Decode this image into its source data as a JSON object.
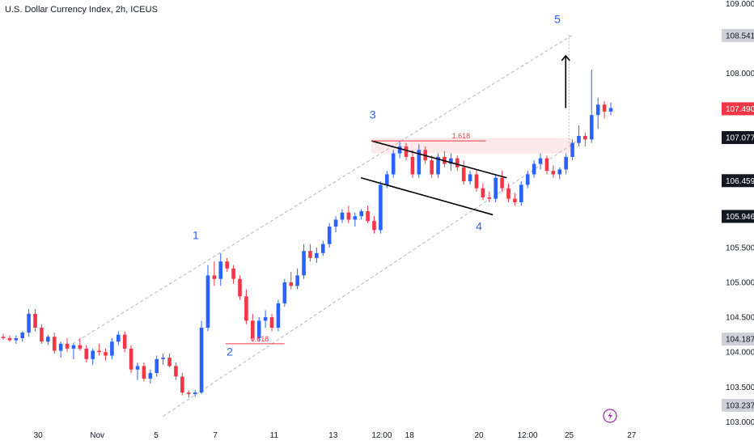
{
  "title": "U.S. Dollar Currency Index, 2h, ICEUS",
  "colors": {
    "bull": "#2962ff",
    "bear": "#f23645",
    "channel": "#b2b5be",
    "fib": "#f23645",
    "wave_label": "#2962ff",
    "zone": "#fbe5e7",
    "axis_text": "#131722"
  },
  "chart_data": {
    "type": "candlestick",
    "y_axis": {
      "range": [
        102.9,
        109.05
      ],
      "ticks": [
        "109.000",
        "108.000",
        "105.500",
        "105.000",
        "104.500",
        "104.000",
        "103.500",
        "103.000"
      ]
    },
    "x_axis": {
      "range": [
        0,
        100
      ],
      "ticks": [
        {
          "x": 5.5,
          "label": "30"
        },
        {
          "x": 14,
          "label": "Nov"
        },
        {
          "x": 22.5,
          "label": "5"
        },
        {
          "x": 31,
          "label": "7"
        },
        {
          "x": 39.5,
          "label": "11"
        },
        {
          "x": 48,
          "label": "13"
        },
        {
          "x": 55,
          "label": "12:00"
        },
        {
          "x": 59,
          "label": "18"
        },
        {
          "x": 69,
          "label": "20"
        },
        {
          "x": 76,
          "label": "12:00"
        },
        {
          "x": 82,
          "label": "25"
        },
        {
          "x": 91,
          "label": "27"
        }
      ]
    },
    "price_labels": [
      {
        "value": 108.541,
        "text": "108.541",
        "style": "gray"
      },
      {
        "value": 107.49,
        "text": "107.490",
        "style": "red"
      },
      {
        "value": 107.077,
        "text": "107.077",
        "style": "black"
      },
      {
        "value": 106.459,
        "text": "106.459",
        "style": "black"
      },
      {
        "value": 105.946,
        "text": "105.946",
        "style": "black"
      },
      {
        "value": 104.187,
        "text": "104.187",
        "style": "gray"
      },
      {
        "value": 103.237,
        "text": "103.237",
        "style": "gray"
      }
    ],
    "wave_labels": [
      {
        "text": "1",
        "x": 28.2,
        "y": 105.62
      },
      {
        "text": "2",
        "x": 33.1,
        "y": 103.95
      },
      {
        "text": "3",
        "x": 53.7,
        "y": 107.35
      },
      {
        "text": "4",
        "x": 69,
        "y": 105.75
      },
      {
        "text": "5",
        "x": 80.3,
        "y": 108.72
      }
    ],
    "fib_levels": [
      {
        "label": "0.618",
        "x1": 32.5,
        "x2": 41,
        "y": 104.12
      },
      {
        "label": "1.618",
        "x1": 53.5,
        "x2": 70,
        "y": 107.03
      }
    ],
    "channel_lines": [
      {
        "x1": 10.5,
        "y1": 104.12,
        "x2": 82.5,
        "y2": 108.55
      },
      {
        "x1": 23.5,
        "y1": 103.08,
        "x2": 83,
        "y2": 107.02
      }
    ],
    "wedge_lines": [
      {
        "x1": 53.5,
        "y1": 107.03,
        "x2": 73,
        "y2": 106.5
      },
      {
        "x1": 52,
        "y1": 106.5,
        "x2": 71,
        "y2": 105.97
      }
    ],
    "zone": {
      "x1": 53.5,
      "x2": 82.5,
      "y1": 106.85,
      "y2": 107.07
    },
    "arrow": {
      "x": 81.5,
      "y_from": 107.5,
      "y_to": 108.25,
      "dashed_to": 108.55
    },
    "candles": [
      [
        104.22,
        104.26,
        104.18,
        104.2
      ],
      [
        104.2,
        104.24,
        104.15,
        104.17
      ],
      [
        104.17,
        104.24,
        104.12,
        104.2
      ],
      [
        104.2,
        104.3,
        104.15,
        104.28
      ],
      [
        104.28,
        104.62,
        104.22,
        104.55
      ],
      [
        104.55,
        104.62,
        104.3,
        104.35
      ],
      [
        104.35,
        104.4,
        104.12,
        104.15
      ],
      [
        104.15,
        104.25,
        104.1,
        104.22
      ],
      [
        104.22,
        104.28,
        103.98,
        104.02
      ],
      [
        104.02,
        104.15,
        103.92,
        104.12
      ],
      [
        104.12,
        104.2,
        104.0,
        104.05
      ],
      [
        104.05,
        104.12,
        103.9,
        104.1
      ],
      [
        104.1,
        104.2,
        104.02,
        104.05
      ],
      [
        104.05,
        104.1,
        103.85,
        103.9
      ],
      [
        103.9,
        104.05,
        103.82,
        104.02
      ],
      [
        104.02,
        104.12,
        103.95,
        104.0
      ],
      [
        104.0,
        104.05,
        103.88,
        103.95
      ],
      [
        103.95,
        104.2,
        103.9,
        104.15
      ],
      [
        104.15,
        104.3,
        104.1,
        104.25
      ],
      [
        104.25,
        104.3,
        104.0,
        104.05
      ],
      [
        104.05,
        104.1,
        103.7,
        103.75
      ],
      [
        103.75,
        103.85,
        103.6,
        103.8
      ],
      [
        103.8,
        103.85,
        103.58,
        103.62
      ],
      [
        103.62,
        103.75,
        103.55,
        103.7
      ],
      [
        103.7,
        103.95,
        103.65,
        103.9
      ],
      [
        103.9,
        103.98,
        103.82,
        103.92
      ],
      [
        103.92,
        103.98,
        103.78,
        103.8
      ],
      [
        103.8,
        103.85,
        103.6,
        103.65
      ],
      [
        103.65,
        103.7,
        103.38,
        103.42
      ],
      [
        103.42,
        103.45,
        103.35,
        103.4
      ],
      [
        103.4,
        103.46,
        103.36,
        103.42
      ],
      [
        103.42,
        104.45,
        103.4,
        104.35
      ],
      [
        104.35,
        105.25,
        104.3,
        105.1
      ],
      [
        105.1,
        105.3,
        104.95,
        105.05
      ],
      [
        105.05,
        105.42,
        104.95,
        105.3
      ],
      [
        105.3,
        105.35,
        105.15,
        105.2
      ],
      [
        105.2,
        105.25,
        104.98,
        105.05
      ],
      [
        105.05,
        105.1,
        104.75,
        104.8
      ],
      [
        104.8,
        104.9,
        104.4,
        104.45
      ],
      [
        104.45,
        104.55,
        104.15,
        104.2
      ],
      [
        104.2,
        104.5,
        104.15,
        104.45
      ],
      [
        104.45,
        104.6,
        104.35,
        104.5
      ],
      [
        104.5,
        104.55,
        104.3,
        104.35
      ],
      [
        104.35,
        104.75,
        104.3,
        104.7
      ],
      [
        104.7,
        105.05,
        104.65,
        105.0
      ],
      [
        105.0,
        105.15,
        104.9,
        104.95
      ],
      [
        104.95,
        105.2,
        104.9,
        105.1
      ],
      [
        105.1,
        105.55,
        105.05,
        105.45
      ],
      [
        105.45,
        105.55,
        105.3,
        105.35
      ],
      [
        105.35,
        105.5,
        105.28,
        105.42
      ],
      [
        105.42,
        105.6,
        105.38,
        105.55
      ],
      [
        105.55,
        105.85,
        105.5,
        105.8
      ],
      [
        105.8,
        105.95,
        105.72,
        105.9
      ],
      [
        105.9,
        106.05,
        105.85,
        106.0
      ],
      [
        106.0,
        106.1,
        105.85,
        105.9
      ],
      [
        105.9,
        106.0,
        105.8,
        105.95
      ],
      [
        105.95,
        106.05,
        105.9,
        106.02
      ],
      [
        106.02,
        106.1,
        105.85,
        105.88
      ],
      [
        105.88,
        105.95,
        105.7,
        105.75
      ],
      [
        105.75,
        106.45,
        105.7,
        106.4
      ],
      [
        106.4,
        106.6,
        106.35,
        106.55
      ],
      [
        106.55,
        106.9,
        106.5,
        106.85
      ],
      [
        106.85,
        107.02,
        106.78,
        106.95
      ],
      [
        106.95,
        107.0,
        106.75,
        106.8
      ],
      [
        106.8,
        106.9,
        106.5,
        106.55
      ],
      [
        106.55,
        106.98,
        106.5,
        106.9
      ],
      [
        106.9,
        106.95,
        106.7,
        106.75
      ],
      [
        106.75,
        106.82,
        106.5,
        106.55
      ],
      [
        106.55,
        106.85,
        106.5,
        106.8
      ],
      [
        106.8,
        106.88,
        106.65,
        106.7
      ],
      [
        106.7,
        106.85,
        106.6,
        106.78
      ],
      [
        106.78,
        106.82,
        106.6,
        106.65
      ],
      [
        106.65,
        106.75,
        106.4,
        106.45
      ],
      [
        106.45,
        106.6,
        106.4,
        106.55
      ],
      [
        106.55,
        106.62,
        106.3,
        106.35
      ],
      [
        106.35,
        106.42,
        106.18,
        106.22
      ],
      [
        106.22,
        106.3,
        106.15,
        106.2
      ],
      [
        106.2,
        106.55,
        106.15,
        106.5
      ],
      [
        106.5,
        106.6,
        106.3,
        106.35
      ],
      [
        106.35,
        106.42,
        106.15,
        106.2
      ],
      [
        106.2,
        106.28,
        106.1,
        106.15
      ],
      [
        106.15,
        106.45,
        106.1,
        106.4
      ],
      [
        106.4,
        106.6,
        106.35,
        106.55
      ],
      [
        106.55,
        106.75,
        106.5,
        106.7
      ],
      [
        106.7,
        106.85,
        106.62,
        106.78
      ],
      [
        106.78,
        106.82,
        106.55,
        106.6
      ],
      [
        106.6,
        106.68,
        106.5,
        106.55
      ],
      [
        106.55,
        106.65,
        106.48,
        106.62
      ],
      [
        106.62,
        106.85,
        106.55,
        106.8
      ],
      [
        106.8,
        107.05,
        106.75,
        107.0
      ],
      [
        107.0,
        107.25,
        106.95,
        107.1
      ],
      [
        107.1,
        107.15,
        106.95,
        107.05
      ],
      [
        107.05,
        108.05,
        107.0,
        107.4
      ],
      [
        107.4,
        107.65,
        107.2,
        107.55
      ],
      [
        107.55,
        107.6,
        107.35,
        107.45
      ],
      [
        107.45,
        107.58,
        107.4,
        107.5
      ]
    ]
  },
  "alert_icon": "lightning-icon"
}
